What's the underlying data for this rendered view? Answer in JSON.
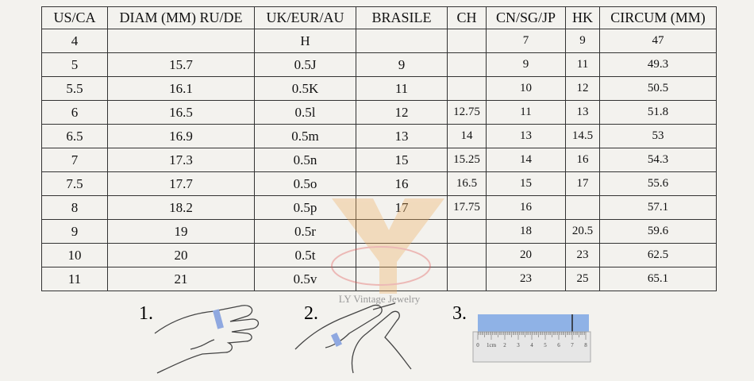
{
  "table": {
    "header": [
      "US/CA",
      "DIAM (MM) RU/DE",
      "UK/EUR/AU",
      "BRASILE",
      "CH",
      "CN/SG/JP",
      "HK",
      "CIRCUM (MM)"
    ],
    "rows": [
      [
        "4",
        null,
        "H",
        null,
        null,
        "7",
        "9",
        "47"
      ],
      [
        "5",
        "15.7",
        "0.5J",
        "9",
        null,
        "9",
        "11",
        "49.3"
      ],
      [
        "5.5",
        "16.1",
        "0.5K",
        "11",
        null,
        "10",
        "12",
        "50.5"
      ],
      [
        "6",
        "16.5",
        "0.5l",
        "12",
        "12.75",
        "11",
        "13",
        "51.8"
      ],
      [
        "6.5",
        "16.9",
        "0.5m",
        "13",
        "14",
        "13",
        "14.5",
        "53"
      ],
      [
        "7",
        "17.3",
        "0.5n",
        "15",
        "15.25",
        "14",
        "16",
        "54.3"
      ],
      [
        "7.5",
        "17.7",
        "0.5o",
        "16",
        "16.5",
        "15",
        "17",
        "55.6"
      ],
      [
        "8",
        "18.2",
        "0.5p",
        "17",
        "17.75",
        "16",
        null,
        "57.1"
      ],
      [
        "9",
        "19",
        "0.5r",
        null,
        null,
        "18",
        "20.5",
        "59.6"
      ],
      [
        "10",
        "20",
        "0.5t",
        null,
        null,
        "20",
        "23",
        "62.5"
      ],
      [
        "11",
        "21",
        "0.5v",
        null,
        null,
        "23",
        "25",
        "65.1"
      ]
    ]
  },
  "watermark": "LY Vintage Jewelry",
  "steps": [
    "1.",
    "2.",
    "3."
  ],
  "ruler_labels": [
    "0",
    "1cm",
    "2",
    "3",
    "4",
    "5",
    "6",
    "7",
    "8"
  ]
}
